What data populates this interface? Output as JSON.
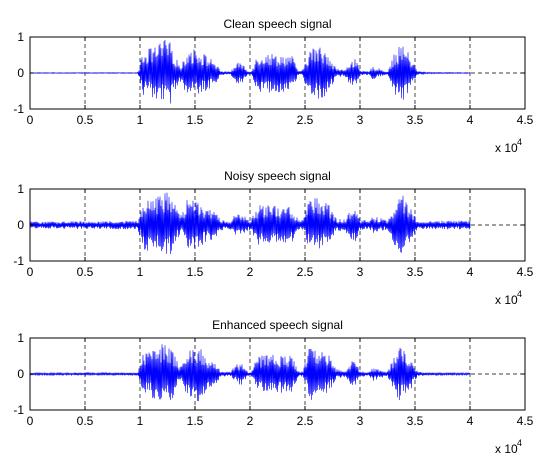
{
  "figure": {
    "background": "#ffffff",
    "signal_color": "#0000ff",
    "axes_color": "#000000",
    "grid_style": "dashed"
  },
  "chart_data": [
    {
      "type": "line",
      "title": "Clean speech signal",
      "xlabel": "",
      "ylabel": "",
      "xlim": [
        0,
        45000
      ],
      "ylim": [
        -1,
        1
      ],
      "xticks": [
        0,
        5000,
        10000,
        15000,
        20000,
        25000,
        30000,
        35000,
        40000,
        45000
      ],
      "xtick_labels": [
        "0",
        "0.5",
        "1",
        "1.5",
        "2",
        "2.5",
        "3",
        "3.5",
        "4",
        "4.5"
      ],
      "yticks": [
        -1,
        0,
        1
      ],
      "ytick_labels": [
        "-1",
        "0",
        "1"
      ],
      "x_exponent_label": "x 10",
      "x_exponent_power": "4",
      "grid": "x-dashed",
      "series": [
        {
          "sample_count": 40000,
          "noise_floor": 0.01,
          "envelope": [
            [
              0,
              0.01
            ],
            [
              9800,
              0.01
            ],
            [
              10300,
              0.65
            ],
            [
              11500,
              0.75
            ],
            [
              12200,
              0.95
            ],
            [
              12800,
              0.85
            ],
            [
              13400,
              0.35
            ],
            [
              13800,
              0.2
            ],
            [
              14200,
              0.65
            ],
            [
              15200,
              0.7
            ],
            [
              16000,
              0.5
            ],
            [
              16800,
              0.35
            ],
            [
              17300,
              0.06
            ],
            [
              18200,
              0.04
            ],
            [
              18800,
              0.28
            ],
            [
              19300,
              0.3
            ],
            [
              19800,
              0.04
            ],
            [
              20100,
              0.04
            ],
            [
              20700,
              0.55
            ],
            [
              22000,
              0.55
            ],
            [
              23800,
              0.5
            ],
            [
              24400,
              0.06
            ],
            [
              24800,
              0.08
            ],
            [
              25400,
              0.7
            ],
            [
              26300,
              0.75
            ],
            [
              27100,
              0.6
            ],
            [
              27800,
              0.15
            ],
            [
              28600,
              0.08
            ],
            [
              29200,
              0.4
            ],
            [
              29600,
              0.42
            ],
            [
              30000,
              0.06
            ],
            [
              30800,
              0.05
            ],
            [
              31200,
              0.2
            ],
            [
              31800,
              0.12
            ],
            [
              32500,
              0.04
            ],
            [
              33200,
              0.6
            ],
            [
              33900,
              0.85
            ],
            [
              34600,
              0.45
            ],
            [
              35200,
              0.06
            ],
            [
              36000,
              0.02
            ],
            [
              40000,
              0.01
            ]
          ]
        }
      ]
    },
    {
      "type": "line",
      "title": "Noisy speech signal",
      "xlabel": "",
      "ylabel": "",
      "xlim": [
        0,
        45000
      ],
      "ylim": [
        -1,
        1
      ],
      "xticks": [
        0,
        5000,
        10000,
        15000,
        20000,
        25000,
        30000,
        35000,
        40000,
        45000
      ],
      "xtick_labels": [
        "0",
        "0.5",
        "1",
        "1.5",
        "2",
        "2.5",
        "3",
        "3.5",
        "4",
        "4.5"
      ],
      "yticks": [
        -1,
        0,
        1
      ],
      "ytick_labels": [
        "-1",
        "0",
        "1"
      ],
      "x_exponent_label": "x 10",
      "x_exponent_power": "4",
      "grid": "x-dashed",
      "series": [
        {
          "sample_count": 40000,
          "noise_floor": 0.12,
          "envelope": [
            [
              0,
              0.1
            ],
            [
              9800,
              0.12
            ],
            [
              10300,
              0.7
            ],
            [
              11500,
              0.8
            ],
            [
              12200,
              0.95
            ],
            [
              12800,
              0.85
            ],
            [
              13400,
              0.4
            ],
            [
              13800,
              0.25
            ],
            [
              14200,
              0.7
            ],
            [
              15200,
              0.7
            ],
            [
              16000,
              0.5
            ],
            [
              16800,
              0.4
            ],
            [
              17300,
              0.15
            ],
            [
              18200,
              0.12
            ],
            [
              18800,
              0.35
            ],
            [
              19300,
              0.35
            ],
            [
              19800,
              0.15
            ],
            [
              20100,
              0.15
            ],
            [
              20700,
              0.55
            ],
            [
              22000,
              0.55
            ],
            [
              23800,
              0.5
            ],
            [
              24400,
              0.15
            ],
            [
              24800,
              0.15
            ],
            [
              25400,
              0.75
            ],
            [
              26300,
              0.75
            ],
            [
              27100,
              0.6
            ],
            [
              27800,
              0.2
            ],
            [
              28600,
              0.15
            ],
            [
              29200,
              0.45
            ],
            [
              29600,
              0.45
            ],
            [
              30000,
              0.15
            ],
            [
              30800,
              0.12
            ],
            [
              31200,
              0.25
            ],
            [
              31800,
              0.2
            ],
            [
              32500,
              0.12
            ],
            [
              33200,
              0.65
            ],
            [
              33900,
              0.85
            ],
            [
              34600,
              0.5
            ],
            [
              35200,
              0.15
            ],
            [
              36000,
              0.12
            ],
            [
              40000,
              0.12
            ]
          ]
        }
      ]
    },
    {
      "type": "line",
      "title": "Enhanced speech signal",
      "xlabel": "",
      "ylabel": "",
      "xlim": [
        0,
        45000
      ],
      "ylim": [
        -1,
        1
      ],
      "xticks": [
        0,
        5000,
        10000,
        15000,
        20000,
        25000,
        30000,
        35000,
        40000,
        45000
      ],
      "xtick_labels": [
        "0",
        "0.5",
        "1",
        "1.5",
        "2",
        "2.5",
        "3",
        "3.5",
        "4",
        "4.5"
      ],
      "yticks": [
        -1,
        0,
        1
      ],
      "ytick_labels": [
        "-1",
        "0",
        "1"
      ],
      "x_exponent_label": "x 10",
      "x_exponent_power": "4",
      "grid": "x-dashed",
      "series": [
        {
          "sample_count": 40000,
          "noise_floor": 0.03,
          "envelope": [
            [
              0,
              0.03
            ],
            [
              9800,
              0.04
            ],
            [
              10300,
              0.6
            ],
            [
              11500,
              0.7
            ],
            [
              12200,
              0.9
            ],
            [
              12800,
              0.8
            ],
            [
              13400,
              0.35
            ],
            [
              13800,
              0.2
            ],
            [
              14200,
              0.6
            ],
            [
              15200,
              0.85
            ],
            [
              16000,
              0.5
            ],
            [
              16800,
              0.35
            ],
            [
              17300,
              0.08
            ],
            [
              18200,
              0.06
            ],
            [
              18800,
              0.28
            ],
            [
              19300,
              0.3
            ],
            [
              19800,
              0.06
            ],
            [
              20100,
              0.06
            ],
            [
              20700,
              0.5
            ],
            [
              22000,
              0.55
            ],
            [
              23800,
              0.5
            ],
            [
              24400,
              0.08
            ],
            [
              24800,
              0.08
            ],
            [
              25400,
              0.75
            ],
            [
              26300,
              0.7
            ],
            [
              27100,
              0.6
            ],
            [
              27800,
              0.15
            ],
            [
              28600,
              0.08
            ],
            [
              29200,
              0.35
            ],
            [
              29600,
              0.35
            ],
            [
              30000,
              0.08
            ],
            [
              30800,
              0.06
            ],
            [
              31200,
              0.2
            ],
            [
              31800,
              0.12
            ],
            [
              32500,
              0.06
            ],
            [
              33200,
              0.6
            ],
            [
              33900,
              0.85
            ],
            [
              34600,
              0.45
            ],
            [
              35200,
              0.08
            ],
            [
              36000,
              0.04
            ],
            [
              40000,
              0.03
            ]
          ]
        }
      ]
    }
  ]
}
